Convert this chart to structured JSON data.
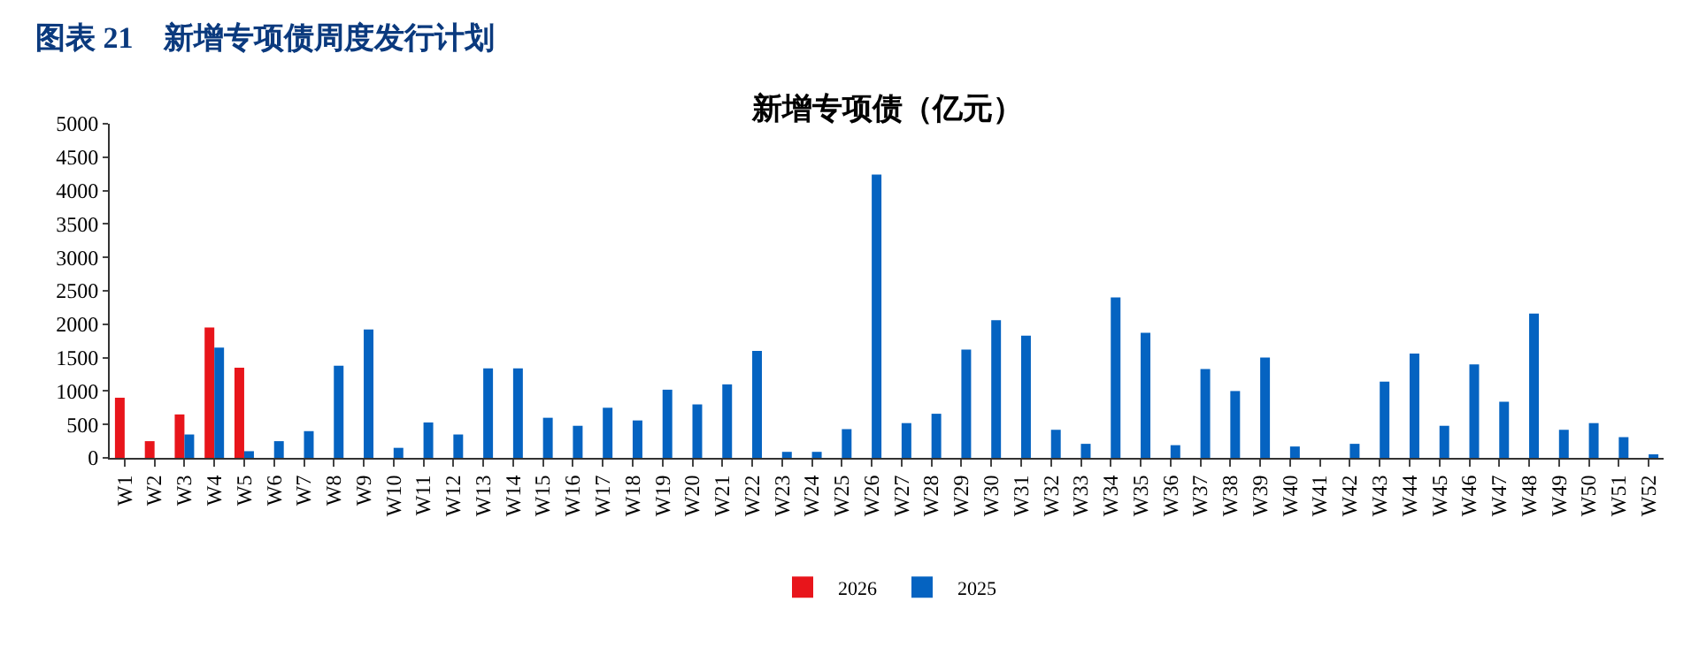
{
  "chart_data": {
    "type": "bar",
    "title": "图表 21　新增专项债周度发行计划",
    "subtitle": "新增专项债（亿元）",
    "categories": [
      "W1",
      "W2",
      "W3",
      "W4",
      "W5",
      "W6",
      "W7",
      "W8",
      "W9",
      "W10",
      "W11",
      "W12",
      "W13",
      "W14",
      "W15",
      "W16",
      "W17",
      "W18",
      "W19",
      "W20",
      "W21",
      "W22",
      "W23",
      "W24",
      "W25",
      "W26",
      "W27",
      "W28",
      "W29",
      "W30",
      "W31",
      "W32",
      "W33",
      "W34",
      "W35",
      "W36",
      "W37",
      "W38",
      "W39",
      "W40",
      "W41",
      "W42",
      "W43",
      "W44",
      "W45",
      "W46",
      "W47",
      "W48",
      "W49",
      "W50",
      "W51",
      "W52"
    ],
    "series": [
      {
        "name": "2026",
        "color": "#e8151b",
        "values": [
          900,
          250,
          650,
          1950,
          1350,
          null,
          null,
          null,
          null,
          null,
          null,
          null,
          null,
          null,
          null,
          null,
          null,
          null,
          null,
          null,
          null,
          null,
          null,
          null,
          null,
          null,
          null,
          null,
          null,
          null,
          null,
          null,
          null,
          null,
          null,
          null,
          null,
          null,
          null,
          null,
          null,
          null,
          null,
          null,
          null,
          null,
          null,
          null,
          null,
          null,
          null,
          null
        ]
      },
      {
        "name": "2025",
        "color": "#0563c1",
        "values": [
          null,
          null,
          350,
          1650,
          100,
          250,
          400,
          1380,
          1920,
          150,
          530,
          350,
          1340,
          1340,
          600,
          480,
          750,
          560,
          1020,
          800,
          1100,
          1600,
          90,
          90,
          430,
          4240,
          520,
          660,
          1620,
          2060,
          1830,
          420,
          210,
          2400,
          1870,
          190,
          1330,
          1000,
          1500,
          170,
          null,
          210,
          1140,
          1560,
          480,
          1400,
          840,
          2160,
          420,
          520,
          310,
          30
        ]
      }
    ],
    "ylim": [
      0,
      5000
    ],
    "yticks": [
      0,
      500,
      1000,
      1500,
      2000,
      2500,
      3000,
      3500,
      4000,
      4500,
      5000
    ],
    "legend": "bottom"
  }
}
